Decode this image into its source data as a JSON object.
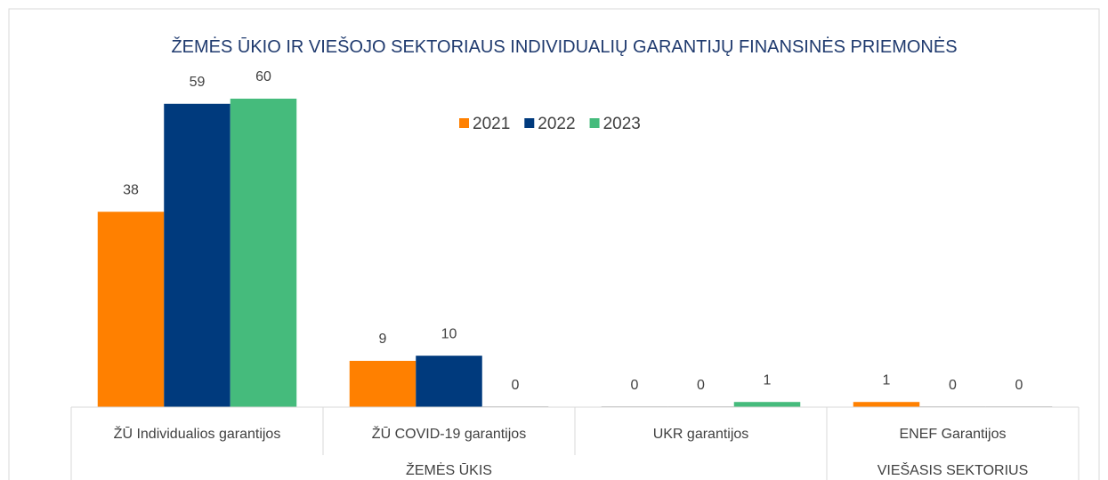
{
  "chart_data": {
    "type": "bar",
    "title": "ŽEMĖS ŪKIO IR VIEŠOJO SEKTORIAUS INDIVIDUALIŲ GARANTIJŲ FINANSINĖS PRIEMONĖS",
    "categories": [
      "ŽŪ Individualios garantijos",
      "ŽŪ COVID-19 garantijos",
      "UKR garantijos",
      "ENEF Garantijos"
    ],
    "category_groups": [
      "ŽEMĖS ŪKIS",
      "ŽEMĖS ŪKIS",
      "ŽEMĖS ŪKIS",
      "VIEŠASIS SEKTORIUS"
    ],
    "series": [
      {
        "name": "2021",
        "color": "#ff8000",
        "values": [
          38,
          9,
          0,
          1
        ]
      },
      {
        "name": "2022",
        "color": "#003a7d",
        "values": [
          59,
          10,
          0,
          0
        ]
      },
      {
        "name": "2023",
        "color": "#45bb7c",
        "values": [
          60,
          0,
          1,
          0
        ]
      }
    ],
    "legend": "top",
    "grid": false
  }
}
